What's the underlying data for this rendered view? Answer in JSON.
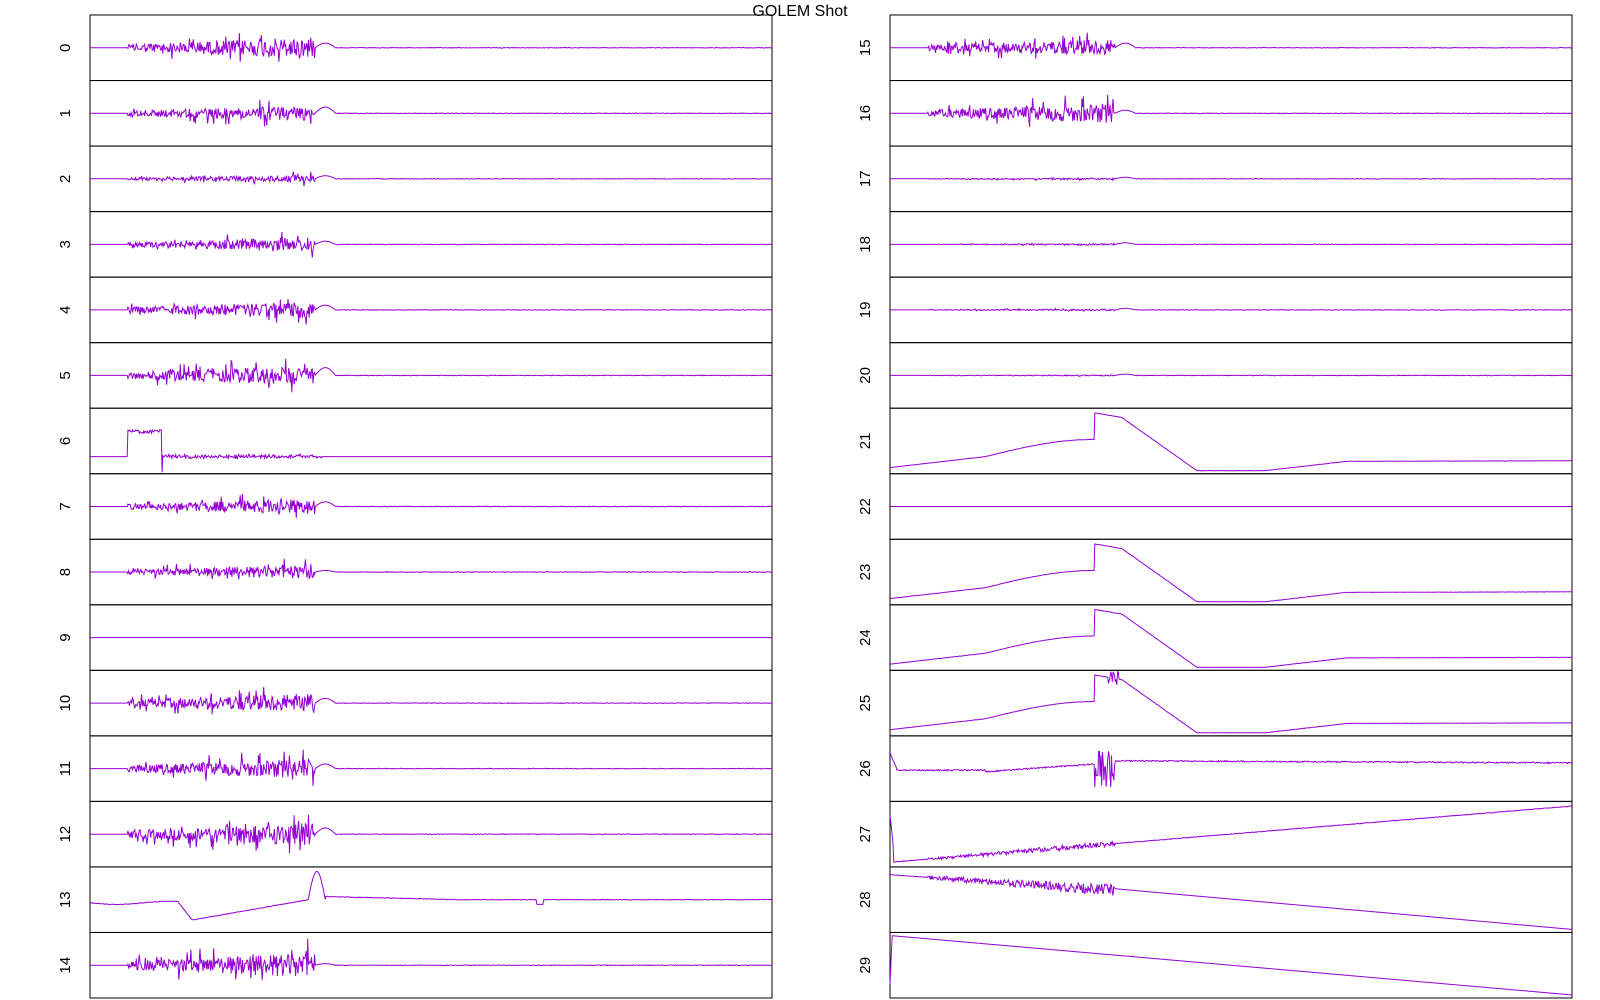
{
  "chart_data": {
    "type": "line",
    "title": "GOLEM Shot",
    "line_color": "#9400d3",
    "layout": "2 columns x 15 stacked panels, no axes ticks",
    "panels": [
      {
        "label": "0",
        "col": 0,
        "kind": "noise",
        "amp": 0.75,
        "bump": 0.15
      },
      {
        "label": "1",
        "col": 0,
        "kind": "noise",
        "amp": 0.55,
        "bump": 0.2
      },
      {
        "label": "2",
        "col": 0,
        "kind": "noise",
        "amp": 0.25,
        "bump": 0.1
      },
      {
        "label": "3",
        "col": 0,
        "kind": "noise",
        "amp": 0.5,
        "bump": 0.1
      },
      {
        "label": "4",
        "col": 0,
        "kind": "noise",
        "amp": 0.6,
        "bump": 0.15
      },
      {
        "label": "5",
        "col": 0,
        "kind": "noise",
        "amp": 0.7,
        "bump": 0.25
      },
      {
        "label": "6",
        "col": 0,
        "kind": "step",
        "amp": 0.15,
        "bump": 0.05
      },
      {
        "label": "7",
        "col": 0,
        "kind": "noise",
        "amp": 0.55,
        "bump": 0.15
      },
      {
        "label": "8",
        "col": 0,
        "kind": "noise",
        "amp": 0.5,
        "bump": 0.05
      },
      {
        "label": "9",
        "col": 0,
        "kind": "flat",
        "amp": 0,
        "bump": 0
      },
      {
        "label": "10",
        "col": 0,
        "kind": "noise",
        "amp": 0.7,
        "bump": 0.15
      },
      {
        "label": "11",
        "col": 0,
        "kind": "noise",
        "amp": 0.7,
        "bump": 0.15
      },
      {
        "label": "12",
        "col": 0,
        "kind": "noise",
        "amp": 0.8,
        "bump": 0.2
      },
      {
        "label": "13",
        "col": 0,
        "kind": "slow",
        "amp": 0.1,
        "bump": 0.8
      },
      {
        "label": "14",
        "col": 0,
        "kind": "noise",
        "amp": 0.9,
        "bump": 0.05
      },
      {
        "label": "15",
        "col": 1,
        "kind": "noise2",
        "amp": 0.6,
        "bump": 0.15
      },
      {
        "label": "16",
        "col": 1,
        "kind": "noise2",
        "amp": 0.7,
        "bump": 0.1
      },
      {
        "label": "17",
        "col": 1,
        "kind": "noise2",
        "amp": 0.06,
        "bump": 0.05
      },
      {
        "label": "18",
        "col": 1,
        "kind": "noise2",
        "amp": 0.05,
        "bump": 0.05
      },
      {
        "label": "19",
        "col": 1,
        "kind": "noise2",
        "amp": 0.06,
        "bump": 0.05
      },
      {
        "label": "20",
        "col": 1,
        "kind": "noise2",
        "amp": 0.04,
        "bump": 0.04
      },
      {
        "label": "21",
        "col": 1,
        "kind": "dome",
        "amp": 0,
        "bump": 0
      },
      {
        "label": "22",
        "col": 1,
        "kind": "flat",
        "amp": 0,
        "bump": 0
      },
      {
        "label": "23",
        "col": 1,
        "kind": "dome",
        "amp": 0,
        "bump": 0
      },
      {
        "label": "24",
        "col": 1,
        "kind": "dome",
        "amp": 0,
        "bump": 0
      },
      {
        "label": "25",
        "col": 1,
        "kind": "dome",
        "amp": 0.1,
        "bump": 0
      },
      {
        "label": "26",
        "col": 1,
        "kind": "drift",
        "amp": 0.05,
        "bump": 0.3
      },
      {
        "label": "27",
        "col": 1,
        "kind": "ramp_up",
        "amp": 0.1,
        "bump": 0.2
      },
      {
        "label": "28",
        "col": 1,
        "kind": "ramp_down",
        "amp": 0.12,
        "bump": 0
      },
      {
        "label": "29",
        "col": 1,
        "kind": "ramp_down2",
        "amp": 0,
        "bump": 0
      }
    ]
  }
}
